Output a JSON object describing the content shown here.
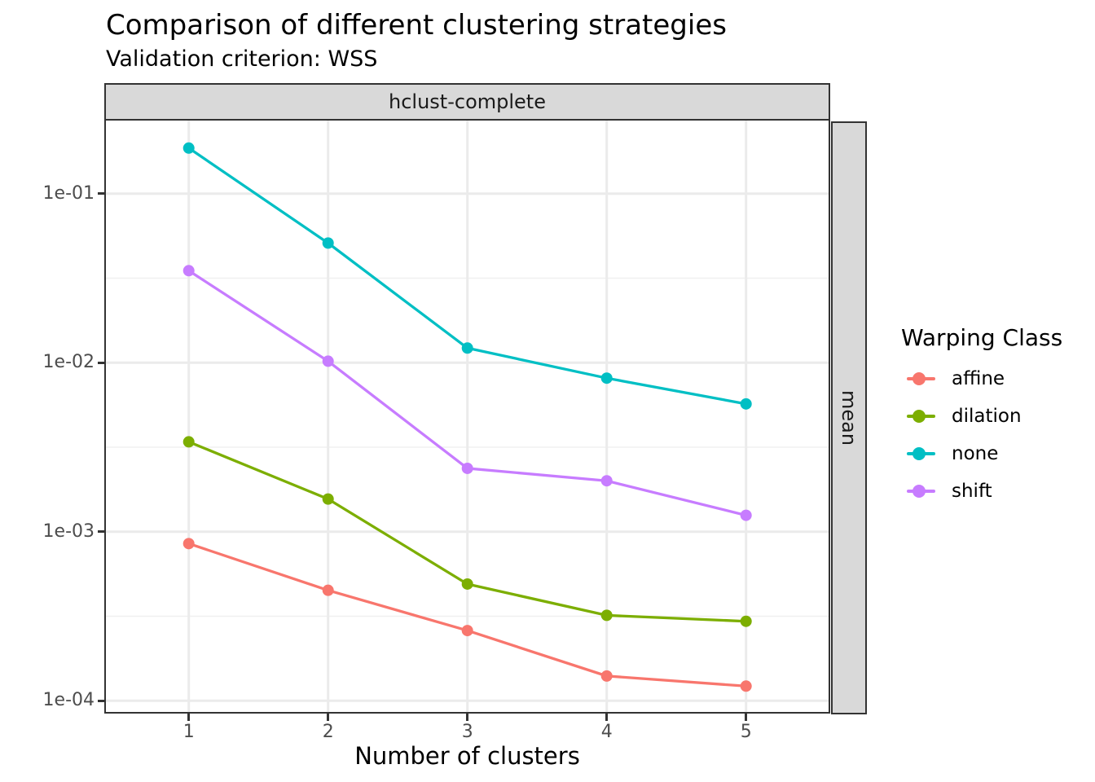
{
  "chart_data": {
    "type": "line",
    "title": "Comparison of different clustering strategies",
    "subtitle": "Validation criterion: WSS",
    "facet_top": "hclust-complete",
    "facet_right": "mean",
    "xlabel": "Number of clusters",
    "ylabel": "",
    "x": [
      1,
      2,
      3,
      4,
      5
    ],
    "x_tick_labels": [
      "1",
      "2",
      "3",
      "4",
      "5"
    ],
    "y_scale": "log10",
    "y_tick_labels": [
      "1e-01",
      "1e-02",
      "1e-03",
      "1e-04"
    ],
    "y_tick_values": [
      0.1,
      0.01,
      0.001,
      0.0001
    ],
    "y_minor_values": [
      0.0316228,
      0.00316228,
      0.000316228
    ],
    "xlim": [
      0.41,
      5.59
    ],
    "ylim": [
      8.5e-05,
      0.27
    ],
    "grid": "major-and-minor",
    "legend_position": "right",
    "legend_title": "Warping Class",
    "series": [
      {
        "name": "affine",
        "color": "#F8766D",
        "values": [
          0.00085,
          0.00045,
          0.00026,
          0.00014,
          0.000122
        ]
      },
      {
        "name": "dilation",
        "color": "#7CAE00",
        "values": [
          0.0034,
          0.00156,
          0.00049,
          0.00032,
          0.000295
        ]
      },
      {
        "name": "none",
        "color": "#00BFC4",
        "values": [
          0.186,
          0.051,
          0.0122,
          0.0081,
          0.0057
        ]
      },
      {
        "name": "shift",
        "color": "#C77CFF",
        "values": [
          0.035,
          0.0102,
          0.00237,
          0.002,
          0.00125
        ]
      }
    ]
  },
  "colors": {
    "strip_background": "#D9D9D9",
    "panel_border": "#333333",
    "grid_major": "#EBEBEB",
    "grid_minor": "#F0F0F0",
    "tick_mark": "#333333",
    "tick_label": "#4D4D4D"
  }
}
